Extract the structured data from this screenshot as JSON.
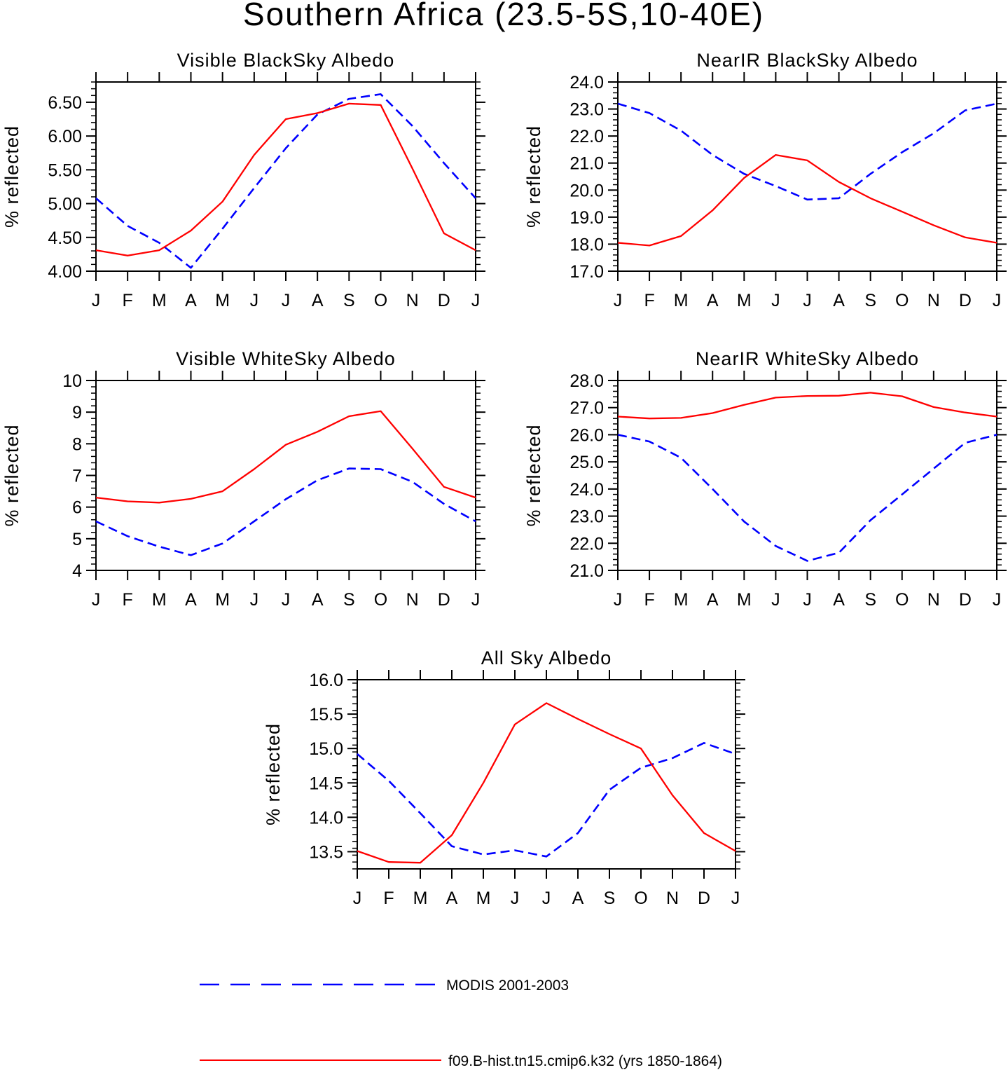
{
  "figure": {
    "title": "Southern Africa (23.5-5S,10-40E)"
  },
  "legend": [
    {
      "label": "MODIS 2001-2003",
      "color": "#0000ff",
      "style": "dashed"
    },
    {
      "label": "f09.B-hist.tn15.cmip6.k32 (yrs 1850-1864)",
      "color": "#ff0000",
      "style": "solid"
    }
  ],
  "chart_data": [
    {
      "type": "line",
      "title": "Visible BlackSky Albedo",
      "ylabel": "% reflected",
      "ylim": [
        4.0,
        6.8
      ],
      "yticks": [
        "4.00",
        "4.50",
        "5.00",
        "5.50",
        "6.00",
        "6.50"
      ],
      "x": [
        "J",
        "F",
        "M",
        "A",
        "M",
        "J",
        "J",
        "A",
        "S",
        "O",
        "N",
        "D",
        "J"
      ],
      "series": [
        {
          "name": "MODIS 2001-2003",
          "color": "#0000ff",
          "dashed": true,
          "values": [
            5.08,
            4.67,
            4.42,
            4.05,
            4.63,
            5.23,
            5.82,
            6.32,
            6.55,
            6.62,
            6.15,
            5.6,
            5.08
          ]
        },
        {
          "name": "f09.B-hist.tn15.cmip6.k32 (yrs 1850-1864)",
          "color": "#ff0000",
          "dashed": false,
          "values": [
            4.31,
            4.23,
            4.31,
            4.6,
            5.03,
            5.72,
            6.25,
            6.34,
            6.48,
            6.46,
            5.52,
            4.56,
            4.31
          ]
        }
      ]
    },
    {
      "type": "line",
      "title": "NearIR BlackSky Albedo",
      "ylabel": "% reflected",
      "ylim": [
        17.0,
        24.0
      ],
      "yticks": [
        "17.0",
        "18.0",
        "19.0",
        "20.0",
        "21.0",
        "22.0",
        "23.0",
        "24.0"
      ],
      "x": [
        "J",
        "F",
        "M",
        "A",
        "M",
        "J",
        "J",
        "A",
        "S",
        "O",
        "N",
        "D",
        "J"
      ],
      "series": [
        {
          "name": "MODIS 2001-2003",
          "color": "#0000ff",
          "dashed": true,
          "values": [
            23.2,
            22.85,
            22.2,
            21.3,
            20.6,
            20.15,
            19.65,
            19.7,
            20.6,
            21.4,
            22.1,
            22.95,
            23.2
          ]
        },
        {
          "name": "f09.B-hist.tn15.cmip6.k32 (yrs 1850-1864)",
          "color": "#ff0000",
          "dashed": false,
          "values": [
            18.05,
            17.95,
            18.3,
            19.25,
            20.45,
            21.3,
            21.1,
            20.3,
            19.7,
            19.2,
            18.7,
            18.25,
            18.05
          ]
        }
      ]
    },
    {
      "type": "line",
      "title": "Visible WhiteSky Albedo",
      "ylabel": "% reflected",
      "ylim": [
        4,
        10
      ],
      "yticks": [
        "4",
        "5",
        "6",
        "7",
        "8",
        "9",
        "10"
      ],
      "x": [
        "J",
        "F",
        "M",
        "A",
        "M",
        "J",
        "J",
        "A",
        "S",
        "O",
        "N",
        "D",
        "J"
      ],
      "series": [
        {
          "name": "MODIS 2001-2003",
          "color": "#0000ff",
          "dashed": true,
          "values": [
            5.55,
            5.08,
            4.75,
            4.48,
            4.85,
            5.55,
            6.25,
            6.85,
            7.22,
            7.2,
            6.8,
            6.1,
            5.55
          ]
        },
        {
          "name": "f09.B-hist.tn15.cmip6.k32 (yrs 1850-1864)",
          "color": "#ff0000",
          "dashed": false,
          "values": [
            6.3,
            6.18,
            6.14,
            6.26,
            6.5,
            7.2,
            7.97,
            8.38,
            8.87,
            9.03,
            7.85,
            6.64,
            6.3
          ]
        }
      ]
    },
    {
      "type": "line",
      "title": "NearIR WhiteSky Albedo",
      "ylabel": "% reflected",
      "ylim": [
        21.0,
        28.0
      ],
      "yticks": [
        "21.0",
        "22.0",
        "23.0",
        "24.0",
        "25.0",
        "26.0",
        "27.0",
        "28.0"
      ],
      "x": [
        "J",
        "F",
        "M",
        "A",
        "M",
        "J",
        "J",
        "A",
        "S",
        "O",
        "N",
        "D",
        "J"
      ],
      "series": [
        {
          "name": "MODIS 2001-2003",
          "color": "#0000ff",
          "dashed": true,
          "values": [
            26.0,
            25.75,
            25.15,
            24.0,
            22.8,
            21.9,
            21.35,
            21.65,
            22.85,
            23.8,
            24.75,
            25.7,
            26.0
          ]
        },
        {
          "name": "f09.B-hist.tn15.cmip6.k32 (yrs 1850-1864)",
          "color": "#ff0000",
          "dashed": false,
          "values": [
            26.67,
            26.6,
            26.62,
            26.8,
            27.1,
            27.37,
            27.43,
            27.44,
            27.55,
            27.42,
            27.02,
            26.82,
            26.67
          ]
        }
      ]
    },
    {
      "type": "line",
      "title": "All Sky Albedo",
      "ylabel": "% reflected",
      "ylim": [
        13.25,
        16.0
      ],
      "yticks": [
        "13.5",
        "14.0",
        "14.5",
        "15.0",
        "15.5",
        "16.0"
      ],
      "x": [
        "J",
        "F",
        "M",
        "A",
        "M",
        "J",
        "J",
        "A",
        "S",
        "O",
        "N",
        "D",
        "J"
      ],
      "series": [
        {
          "name": "MODIS 2001-2003",
          "color": "#0000ff",
          "dashed": true,
          "values": [
            14.92,
            14.53,
            14.06,
            13.58,
            13.46,
            13.52,
            13.43,
            13.77,
            14.4,
            14.72,
            14.86,
            15.08,
            14.92
          ]
        },
        {
          "name": "f09.B-hist.tn15.cmip6.k32 (yrs 1850-1864)",
          "color": "#ff0000",
          "dashed": false,
          "values": [
            13.51,
            13.35,
            13.34,
            13.74,
            14.5,
            15.35,
            15.66,
            15.43,
            15.21,
            15.0,
            14.32,
            13.77,
            13.51
          ]
        }
      ]
    }
  ]
}
